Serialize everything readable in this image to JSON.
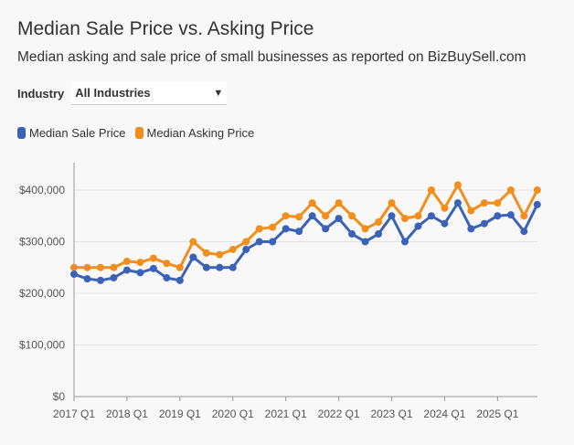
{
  "title": "Median Sale Price vs. Asking Price",
  "subtitle": "Median asking and sale price of small businesses as reported on BizBuySell.com",
  "filter": {
    "label": "Industry",
    "value": "All Industries",
    "icon": "caret-down-icon"
  },
  "chart_data": {
    "type": "line",
    "x": [
      "2017 Q1",
      "2017 Q2",
      "2017 Q3",
      "2017 Q4",
      "2018 Q1",
      "2018 Q2",
      "2018 Q3",
      "2018 Q4",
      "2019 Q1",
      "2019 Q2",
      "2019 Q3",
      "2019 Q4",
      "2020 Q1",
      "2020 Q2",
      "2020 Q3",
      "2020 Q4",
      "2021 Q1",
      "2021 Q2",
      "2021 Q3",
      "2021 Q4",
      "2022 Q1",
      "2022 Q2",
      "2022 Q3",
      "2022 Q4",
      "2023 Q1",
      "2023 Q2",
      "2023 Q3",
      "2023 Q4",
      "2024 Q1",
      "2024 Q2",
      "2024 Q3",
      "2024 Q4",
      "2025 Q1",
      "2025 Q2",
      "2025 Q3",
      "2025 Q4"
    ],
    "xticks": [
      "2017 Q1",
      "2018 Q1",
      "2019 Q1",
      "2020 Q1",
      "2021 Q1",
      "2022 Q1",
      "2023 Q1",
      "2024 Q1",
      "2025 Q1"
    ],
    "yticks": [
      "$0",
      "$100,000",
      "$200,000",
      "$300,000",
      "$400,000"
    ],
    "ylim": [
      0,
      450000
    ],
    "grid": true,
    "legend": "top-left",
    "series": [
      {
        "name": "Median Sale Price",
        "color": "#3a63b8",
        "values": [
          237000,
          228000,
          225000,
          230000,
          245000,
          240000,
          248000,
          230000,
          225000,
          270000,
          250000,
          250000,
          250000,
          285000,
          300000,
          300000,
          325000,
          320000,
          350000,
          325000,
          345000,
          315000,
          300000,
          315000,
          350000,
          300000,
          330000,
          350000,
          335000,
          375000,
          325000,
          335000,
          350000,
          352000,
          320000,
          372000
        ]
      },
      {
        "name": "Median Asking Price",
        "color": "#f28e1c",
        "values": [
          250000,
          250000,
          250000,
          250000,
          262000,
          260000,
          268000,
          258000,
          250000,
          300000,
          278000,
          275000,
          285000,
          300000,
          325000,
          328000,
          350000,
          348000,
          375000,
          350000,
          375000,
          350000,
          325000,
          338000,
          375000,
          345000,
          350000,
          400000,
          365000,
          410000,
          360000,
          375000,
          375000,
          400000,
          350000,
          400000
        ]
      }
    ]
  }
}
